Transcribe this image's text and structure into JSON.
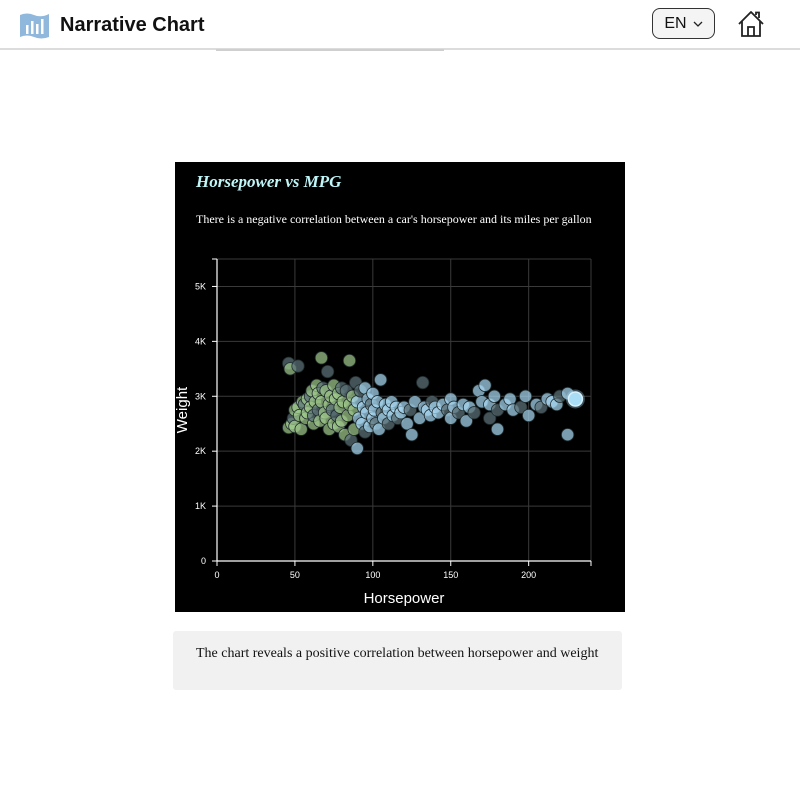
{
  "app": {
    "title": "Narrative Chart",
    "language": "EN"
  },
  "icons": {
    "logo": "bar-chart-logo-icon",
    "language_chevron": "chevron-down-icon",
    "home": "home-icon"
  },
  "chart": {
    "title": "Horsepower vs MPG",
    "subtitle": "There is a negative correlation between a car's horsepower and its miles per gallon"
  },
  "caption": "The chart reveals a positive correlation between horsepower and weight",
  "chart_data": {
    "type": "scatter",
    "title": "Horsepower vs MPG",
    "subtitle": "There is a negative correlation between a car's horsepower and its miles per gallon",
    "xlabel": "Horsepower",
    "ylabel": "Weight",
    "xlim": [
      0,
      240
    ],
    "ylim": [
      0,
      5500
    ],
    "xticks": [
      0,
      50,
      100,
      150,
      200
    ],
    "xtick_labels": [
      "0",
      "50",
      "100",
      "150",
      "200"
    ],
    "yticks": [
      0,
      1000,
      2000,
      3000,
      4000,
      5000
    ],
    "ytick_labels": [
      "0",
      "1K",
      "2K",
      "3K",
      "4K",
      "5K"
    ],
    "grid": true,
    "colors": {
      "background": "#000000",
      "grid": "#3a3a3a",
      "axis": "#ffffff",
      "title": "#bff6f8",
      "point_fill_low_hp": "#9fc98c",
      "point_fill_high_hp": "#a7d8f2",
      "point_fill_dim": "#5d7378",
      "highlight": "#a9dcf5"
    },
    "highlight_point": {
      "x": 230,
      "y": 2950
    },
    "points": [
      [
        46,
        3600
      ],
      [
        47,
        3500
      ],
      [
        46,
        2430
      ],
      [
        48,
        2500
      ],
      [
        49,
        2600
      ],
      [
        50,
        2750
      ],
      [
        50,
        2450
      ],
      [
        52,
        2800
      ],
      [
        52,
        3550
      ],
      [
        53,
        2650
      ],
      [
        54,
        2400
      ],
      [
        55,
        2900
      ],
      [
        56,
        2850
      ],
      [
        57,
        2600
      ],
      [
        58,
        2950
      ],
      [
        58,
        2700
      ],
      [
        60,
        3000
      ],
      [
        60,
        2800
      ],
      [
        61,
        3100
      ],
      [
        62,
        2500
      ],
      [
        62,
        2650
      ],
      [
        63,
        2900
      ],
      [
        64,
        3200
      ],
      [
        65,
        3050
      ],
      [
        65,
        2750
      ],
      [
        66,
        2550
      ],
      [
        67,
        3700
      ],
      [
        67,
        2900
      ],
      [
        68,
        3150
      ],
      [
        69,
        2700
      ],
      [
        70,
        3100
      ],
      [
        70,
        2600
      ],
      [
        71,
        3450
      ],
      [
        72,
        2850
      ],
      [
        72,
        2400
      ],
      [
        73,
        3000
      ],
      [
        74,
        2750
      ],
      [
        75,
        3200
      ],
      [
        75,
        2500
      ],
      [
        76,
        2950
      ],
      [
        77,
        2650
      ],
      [
        78,
        3050
      ],
      [
        78,
        2450
      ],
      [
        79,
        2800
      ],
      [
        80,
        3150
      ],
      [
        80,
        2550
      ],
      [
        81,
        2900
      ],
      [
        82,
        2300
      ],
      [
        83,
        3100
      ],
      [
        84,
        2650
      ],
      [
        85,
        3650
      ],
      [
        85,
        2850
      ],
      [
        86,
        2200
      ],
      [
        87,
        3000
      ],
      [
        88,
        2750
      ],
      [
        88,
        2400
      ],
      [
        89,
        3250
      ],
      [
        90,
        2050
      ],
      [
        90,
        2900
      ],
      [
        91,
        2600
      ],
      [
        92,
        3100
      ],
      [
        93,
        2500
      ],
      [
        94,
        2800
      ],
      [
        95,
        3150
      ],
      [
        95,
        2350
      ],
      [
        96,
        2700
      ],
      [
        97,
        2950
      ],
      [
        98,
        2450
      ],
      [
        99,
        2850
      ],
      [
        100,
        2600
      ],
      [
        100,
        3050
      ],
      [
        101,
        2750
      ],
      [
        102,
        2500
      ],
      [
        103,
        2900
      ],
      [
        104,
        2400
      ],
      [
        105,
        3300
      ],
      [
        106,
        2700
      ],
      [
        107,
        2600
      ],
      [
        108,
        2850
      ],
      [
        110,
        2750
      ],
      [
        110,
        2500
      ],
      [
        112,
        2900
      ],
      [
        113,
        2650
      ],
      [
        115,
        2800
      ],
      [
        116,
        2600
      ],
      [
        118,
        2700
      ],
      [
        120,
        2800
      ],
      [
        122,
        2500
      ],
      [
        124,
        2750
      ],
      [
        125,
        2300
      ],
      [
        127,
        2900
      ],
      [
        130,
        2600
      ],
      [
        132,
        3250
      ],
      [
        133,
        2800
      ],
      [
        135,
        2750
      ],
      [
        137,
        2650
      ],
      [
        138,
        2900
      ],
      [
        140,
        2800
      ],
      [
        142,
        2700
      ],
      [
        145,
        2850
      ],
      [
        148,
        2750
      ],
      [
        150,
        2600
      ],
      [
        150,
        2950
      ],
      [
        152,
        2800
      ],
      [
        155,
        2700
      ],
      [
        158,
        2850
      ],
      [
        160,
        2550
      ],
      [
        162,
        2800
      ],
      [
        165,
        2700
      ],
      [
        168,
        3100
      ],
      [
        170,
        2900
      ],
      [
        172,
        3200
      ],
      [
        175,
        2600
      ],
      [
        175,
        2850
      ],
      [
        178,
        3000
      ],
      [
        180,
        2400
      ],
      [
        180,
        2750
      ],
      [
        185,
        2850
      ],
      [
        188,
        2950
      ],
      [
        190,
        2750
      ],
      [
        195,
        2800
      ],
      [
        198,
        3000
      ],
      [
        200,
        2650
      ],
      [
        205,
        2850
      ],
      [
        208,
        2800
      ],
      [
        212,
        2950
      ],
      [
        215,
        2900
      ],
      [
        218,
        2850
      ],
      [
        220,
        3000
      ],
      [
        225,
        2300
      ],
      [
        225,
        3050
      ]
    ]
  }
}
